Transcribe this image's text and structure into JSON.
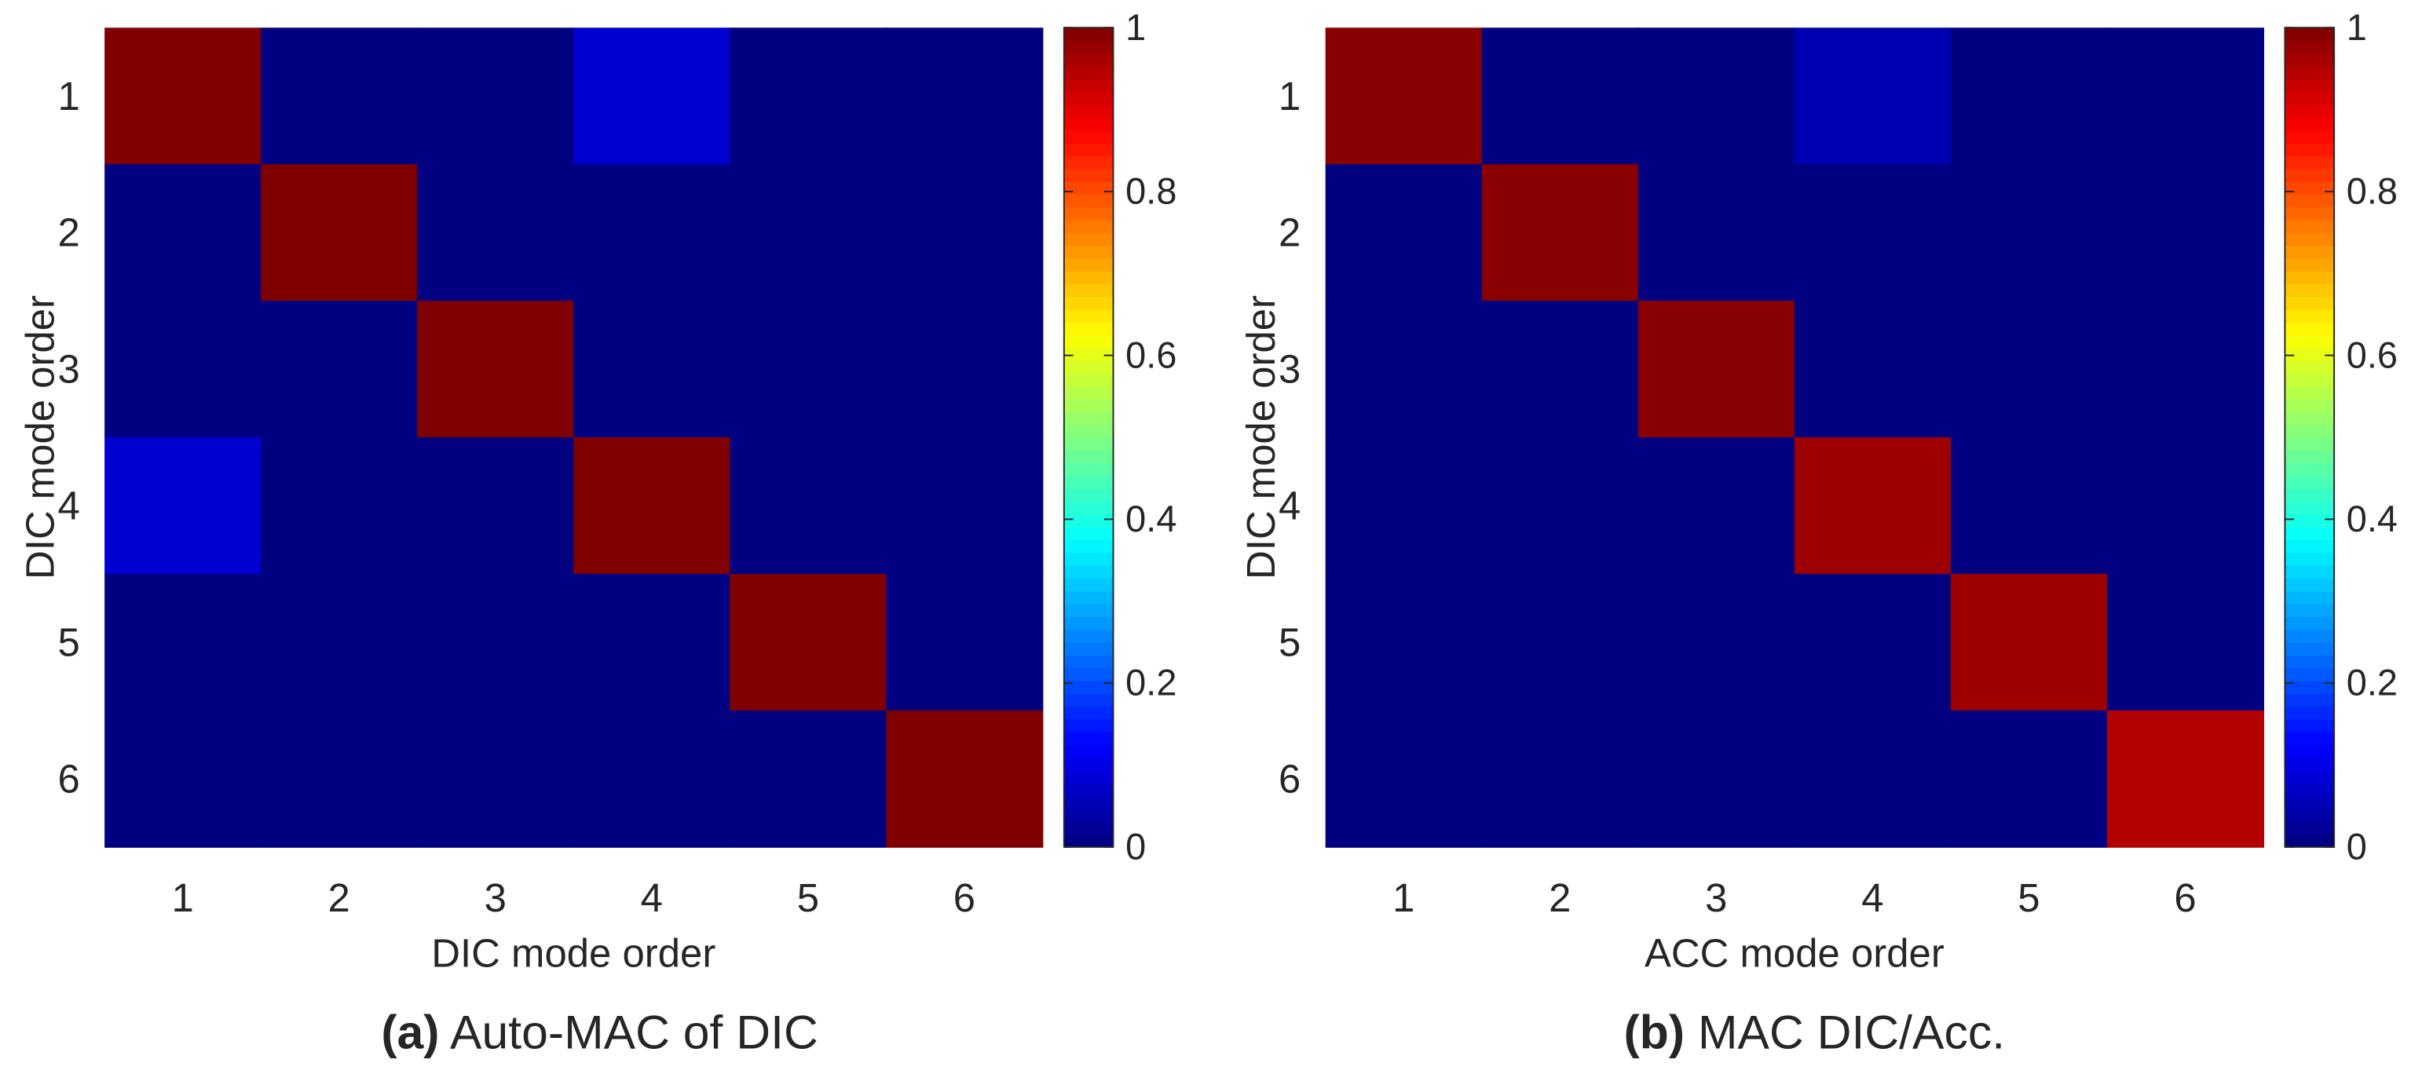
{
  "chart_data": [
    {
      "type": "heatmap",
      "panel_tag": "(a)",
      "caption": "Auto-MAC of DIC",
      "x_categories": [
        "1",
        "2",
        "3",
        "4",
        "5",
        "6"
      ],
      "y_categories": [
        "1",
        "2",
        "3",
        "4",
        "5",
        "6"
      ],
      "xlabel": "DIC mode order",
      "ylabel": "DIC mode order",
      "values": [
        [
          1.0,
          0.0,
          0.0,
          0.08,
          0.0,
          0.0
        ],
        [
          0.0,
          1.0,
          0.0,
          0.0,
          0.0,
          0.0
        ],
        [
          0.0,
          0.0,
          1.0,
          0.0,
          0.0,
          0.0
        ],
        [
          0.08,
          0.0,
          0.0,
          1.0,
          0.0,
          0.0
        ],
        [
          0.0,
          0.0,
          0.0,
          0.0,
          1.0,
          0.0
        ],
        [
          0.0,
          0.0,
          0.0,
          0.0,
          0.0,
          1.0
        ]
      ],
      "colorbar": {
        "colormap": "jet",
        "range": [
          0,
          1
        ],
        "ticks": [
          "0",
          "0.2",
          "0.4",
          "0.6",
          "0.8",
          "1"
        ]
      }
    },
    {
      "type": "heatmap",
      "panel_tag": "(b)",
      "caption": "MAC DIC/Acc.",
      "x_categories": [
        "1",
        "2",
        "3",
        "4",
        "5",
        "6"
      ],
      "y_categories": [
        "1",
        "2",
        "3",
        "4",
        "5",
        "6"
      ],
      "xlabel": "ACC mode order",
      "ylabel": "DIC mode order",
      "values": [
        [
          0.99,
          0.0,
          0.0,
          0.05,
          0.0,
          0.0
        ],
        [
          0.0,
          0.99,
          0.0,
          0.0,
          0.0,
          0.0
        ],
        [
          0.0,
          0.0,
          0.99,
          0.0,
          0.0,
          0.0
        ],
        [
          0.0,
          0.0,
          0.0,
          0.97,
          0.0,
          0.0
        ],
        [
          0.0,
          0.0,
          0.0,
          0.0,
          0.97,
          0.0
        ],
        [
          0.0,
          0.0,
          0.0,
          0.0,
          0.0,
          0.95
        ]
      ],
      "colorbar": {
        "colormap": "jet",
        "range": [
          0,
          1
        ],
        "ticks": [
          "0",
          "0.2",
          "0.4",
          "0.6",
          "0.8",
          "1"
        ]
      }
    }
  ]
}
